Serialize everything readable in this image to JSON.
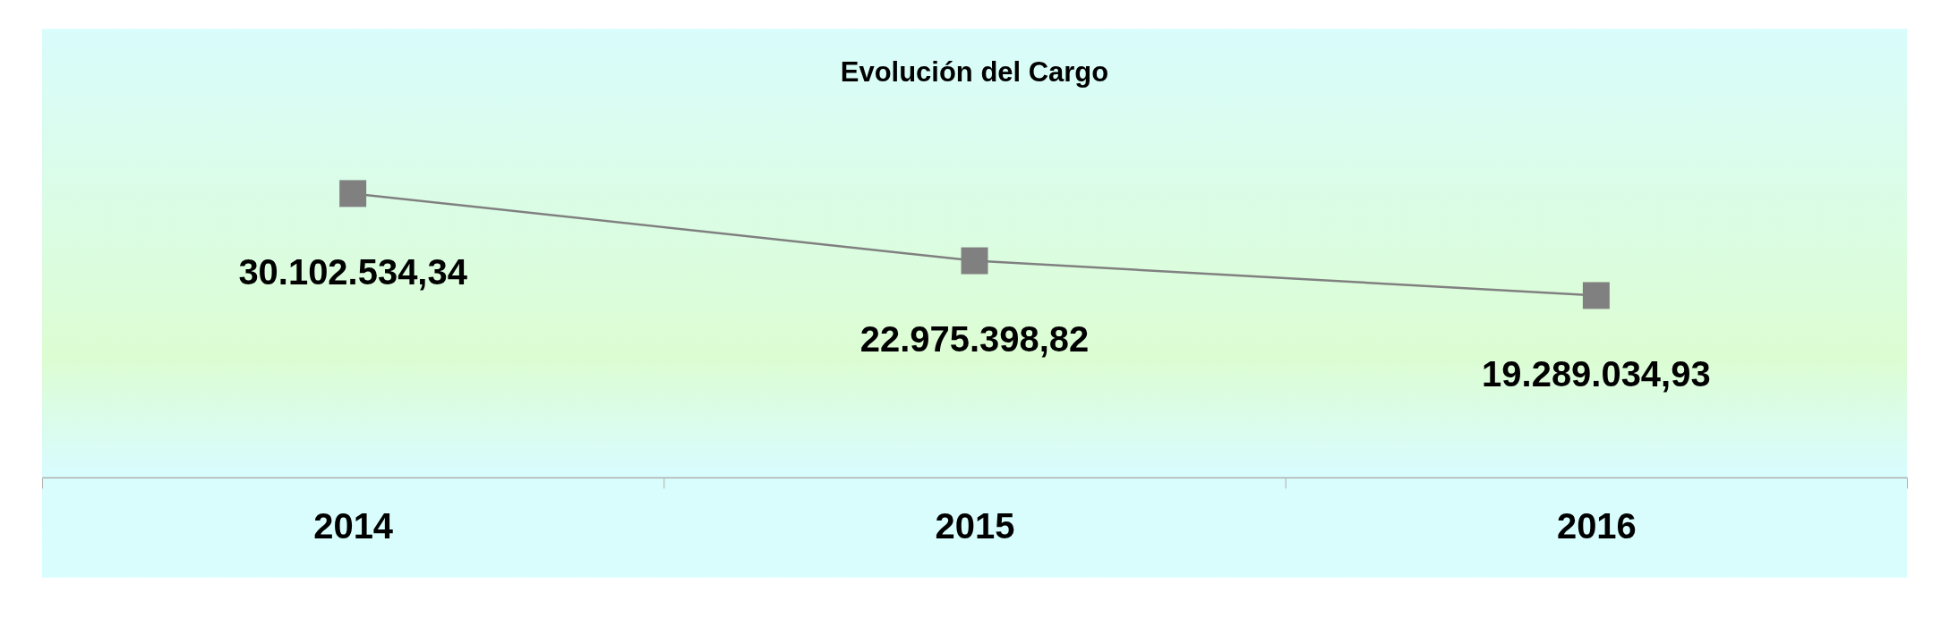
{
  "chart_data": {
    "type": "line",
    "title": "Evolución del Cargo",
    "categories": [
      "2014",
      "2015",
      "2016"
    ],
    "series": [
      {
        "color": "#808080",
        "values": [
          30102534.34,
          22975398.82,
          19289034.93
        ],
        "value_labels": [
          "30.102.534,34",
          "22.975.398,82",
          "19.289.034,93"
        ]
      }
    ],
    "marker": "square",
    "line_style": "solid",
    "grid": false
  }
}
